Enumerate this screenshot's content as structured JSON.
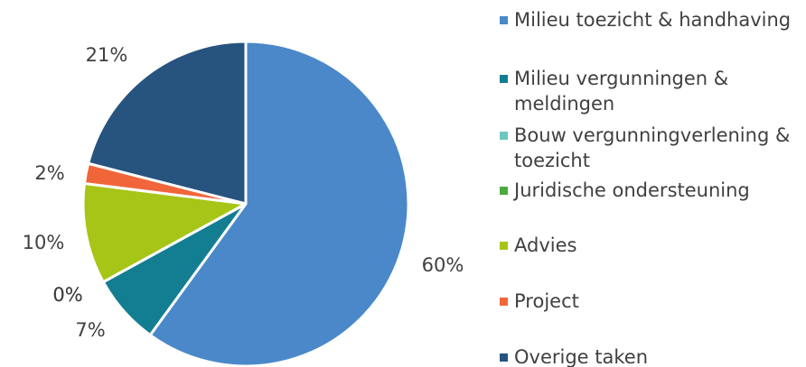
{
  "chart_data": {
    "type": "pie",
    "categories": [
      "Milieu toezicht & handhaving",
      "Milieu vergunningen & meldingen",
      "Bouw vergunningverlening & toezicht",
      "Juridische ondersteuning",
      "Advies",
      "Project",
      "Overige taken"
    ],
    "values": [
      60,
      7,
      0,
      0,
      10,
      2,
      21
    ],
    "value_labels": [
      "60%",
      "7%",
      "0%",
      "0%",
      "10%",
      "2%",
      "21%"
    ],
    "colors": [
      "#4a88c9",
      "#137e91",
      "#6dc6c0",
      "#4caa3e",
      "#a6c516",
      "#f0663a",
      "#27537f"
    ],
    "legend": "right"
  }
}
